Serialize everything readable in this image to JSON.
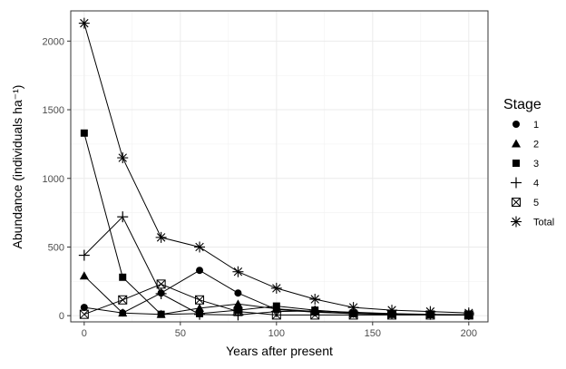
{
  "chart_data": {
    "type": "line",
    "xlabel": "Years after present",
    "ylabel": "Abundance (individuals ha⁻¹)",
    "xlim": [
      -7,
      210
    ],
    "ylim": [
      -45,
      2220
    ],
    "x_ticks": [
      0,
      50,
      100,
      150,
      200
    ],
    "x_tick_labels": [
      "0",
      "50",
      "100",
      "150",
      "200"
    ],
    "y_ticks": [
      0,
      500,
      1000,
      1500,
      2000
    ],
    "y_tick_labels": [
      "0",
      "500",
      "1000",
      "1500",
      "2000"
    ],
    "grid": true,
    "legend_title": "Stage",
    "legend_position": "right",
    "series": [
      {
        "name": "1",
        "marker": "circle",
        "x": [
          0,
          20,
          40,
          60,
          80,
          100,
          120,
          140,
          160,
          180,
          200
        ],
        "y": [
          60,
          20,
          165,
          330,
          165,
          45,
          25,
          15,
          10,
          8,
          5
        ]
      },
      {
        "name": "2",
        "marker": "triangle",
        "x": [
          0,
          20,
          40,
          60,
          80,
          100,
          120,
          140,
          160,
          180,
          200
        ],
        "y": [
          290,
          20,
          10,
          55,
          85,
          50,
          30,
          15,
          10,
          8,
          5
        ]
      },
      {
        "name": "3",
        "marker": "square",
        "x": [
          0,
          20,
          40,
          60,
          80,
          100,
          120,
          140,
          160,
          180,
          200
        ],
        "y": [
          1330,
          280,
          10,
          15,
          40,
          70,
          40,
          20,
          10,
          8,
          5
        ]
      },
      {
        "name": "4",
        "marker": "plus",
        "x": [
          0,
          20,
          40,
          60,
          80,
          100,
          120,
          140,
          160,
          180,
          200
        ],
        "y": [
          440,
          720,
          160,
          10,
          5,
          30,
          35,
          25,
          15,
          10,
          8
        ]
      },
      {
        "name": "5",
        "marker": "boxx",
        "x": [
          0,
          20,
          40,
          60,
          80,
          100,
          120,
          140,
          160,
          180,
          200
        ],
        "y": [
          10,
          115,
          230,
          115,
          30,
          5,
          5,
          5,
          5,
          5,
          5
        ]
      },
      {
        "name": "Total",
        "marker": "star",
        "x": [
          0,
          20,
          40,
          60,
          80,
          100,
          120,
          140,
          160,
          180,
          200
        ],
        "y": [
          2130,
          1150,
          570,
          500,
          320,
          200,
          120,
          60,
          40,
          30,
          20
        ]
      }
    ]
  }
}
